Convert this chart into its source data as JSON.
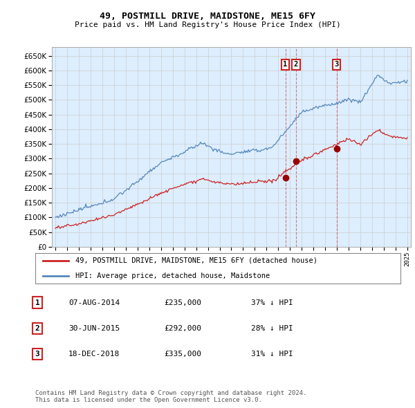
{
  "title": "49, POSTMILL DRIVE, MAIDSTONE, ME15 6FY",
  "subtitle": "Price paid vs. HM Land Registry's House Price Index (HPI)",
  "background_color": "#ffffff",
  "plot_bg_color": "#ddeeff",
  "grid_color": "#cccccc",
  "hpi_color": "#5588bb",
  "price_color": "#cc2222",
  "sale_marker_color": "#990000",
  "vline_color": "#cc4444",
  "ylim": [
    0,
    680000
  ],
  "yticks": [
    0,
    50000,
    100000,
    150000,
    200000,
    250000,
    300000,
    350000,
    400000,
    450000,
    500000,
    550000,
    600000,
    650000
  ],
  "sales": [
    {
      "date_num": 2014.6,
      "price": 235000,
      "label": "1"
    },
    {
      "date_num": 2015.5,
      "price": 292000,
      "label": "2"
    },
    {
      "date_num": 2018.97,
      "price": 335000,
      "label": "3"
    }
  ],
  "legend_entries": [
    {
      "label": "49, POSTMILL DRIVE, MAIDSTONE, ME15 6FY (detached house)",
      "color": "#cc2222"
    },
    {
      "label": "HPI: Average price, detached house, Maidstone",
      "color": "#5588bb"
    }
  ],
  "table_rows": [
    {
      "num": "1",
      "date": "07-AUG-2014",
      "price": "£235,000",
      "pct": "37% ↓ HPI"
    },
    {
      "num": "2",
      "date": "30-JUN-2015",
      "price": "£292,000",
      "pct": "28% ↓ HPI"
    },
    {
      "num": "3",
      "date": "18-DEC-2018",
      "price": "£335,000",
      "pct": "31% ↓ HPI"
    }
  ],
  "footer": "Contains HM Land Registry data © Crown copyright and database right 2024.\nThis data is licensed under the Open Government Licence v3.0.",
  "xlim": [
    1994.7,
    2025.3
  ]
}
